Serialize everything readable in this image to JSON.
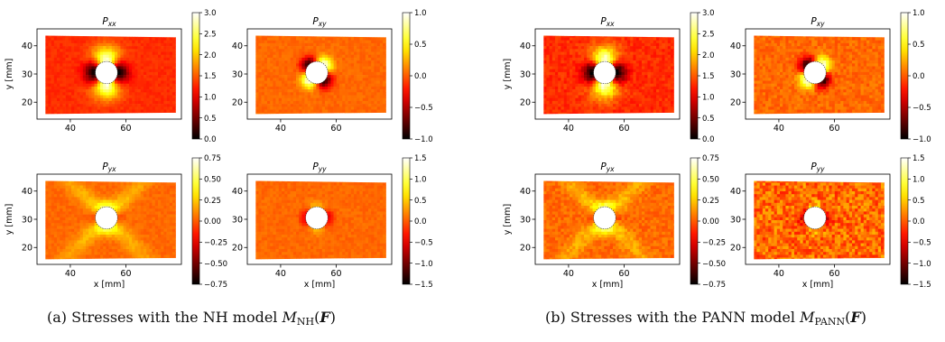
{
  "figures": [
    {
      "caption": {
        "prefix": "(a) Stresses with the NH model ",
        "model_symbol": "M",
        "model_subscript": "NH",
        "argument_open": "(",
        "argument": "F",
        "argument_close": ")"
      },
      "panels": [
        {
          "title_base": "P",
          "title_sub": "xx",
          "field": "xx",
          "colorbar": {
            "min": 0.0,
            "max": 3.0,
            "tick_labels": [
              "3.0",
              "2.5",
              "2.0",
              "1.5",
              "1.0",
              "0.5",
              "0.0"
            ]
          }
        },
        {
          "title_base": "P",
          "title_sub": "xy",
          "field": "xy",
          "colorbar": {
            "min": -1.0,
            "max": 1.0,
            "tick_labels": [
              "1.0",
              "0.5",
              "0.0",
              "−0.5",
              "−1.0"
            ]
          }
        },
        {
          "title_base": "P",
          "title_sub": "yx",
          "field": "yx",
          "colorbar": {
            "min": -0.75,
            "max": 0.75,
            "tick_labels": [
              "0.75",
              "0.50",
              "0.25",
              "0.00",
              "−0.25",
              "−0.50",
              "−0.75"
            ]
          }
        },
        {
          "title_base": "P",
          "title_sub": "yy",
          "field": "yy",
          "colorbar": {
            "min": -1.5,
            "max": 1.5,
            "tick_labels": [
              "1.5",
              "1.0",
              "0.5",
              "0.0",
              "−0.5",
              "−1.0",
              "−1.5"
            ]
          }
        }
      ]
    },
    {
      "caption": {
        "prefix": "(b) Stresses with the PANN model ",
        "model_symbol": "M",
        "model_subscript": "PANN",
        "argument_open": "(",
        "argument": "F",
        "argument_close": ")"
      },
      "panels": [
        {
          "title_base": "P",
          "title_sub": "xx",
          "field": "xx",
          "colorbar": {
            "min": 0.0,
            "max": 3.0,
            "tick_labels": [
              "3.0",
              "2.5",
              "2.0",
              "1.5",
              "1.0",
              "0.5",
              "0.0"
            ]
          }
        },
        {
          "title_base": "P",
          "title_sub": "xy",
          "field": "xy",
          "colorbar": {
            "min": -1.0,
            "max": 1.0,
            "tick_labels": [
              "1.0",
              "0.5",
              "0.0",
              "−0.5",
              "−1.0"
            ]
          }
        },
        {
          "title_base": "P",
          "title_sub": "yx",
          "field": "yx",
          "colorbar": {
            "min": -0.75,
            "max": 0.75,
            "tick_labels": [
              "0.75",
              "0.50",
              "0.25",
              "0.00",
              "−0.25",
              "−0.50",
              "−0.75"
            ]
          }
        },
        {
          "title_base": "P",
          "title_sub": "yy",
          "field": "yy",
          "colorbar": {
            "min": -1.5,
            "max": 1.5,
            "tick_labels": [
              "1.5",
              "1.0",
              "0.5",
              "0.0",
              "−0.5",
              "−1.0",
              "−1.5"
            ]
          }
        }
      ]
    }
  ],
  "chart_data": {
    "type": "heatmap",
    "colormap": "hot",
    "x_axis": {
      "label": "x [mm]",
      "ticks": [
        40,
        60
      ],
      "range": [
        28,
        80
      ]
    },
    "y_axis": {
      "label": "y [mm]",
      "ticks": [
        20,
        30,
        40
      ],
      "range": [
        14,
        46
      ]
    },
    "specimen": {
      "x_range": [
        31,
        78
      ],
      "y_range": [
        16,
        43
      ],
      "hole_center": [
        53,
        30.5
      ],
      "hole_radius": 4
    }
  },
  "colors": {
    "hot_dark": "#000000",
    "hot_red": "#e60000",
    "hot_orange": "#ff5500",
    "hot_yellow": "#ffff00",
    "hot_white": "#ffffff"
  }
}
